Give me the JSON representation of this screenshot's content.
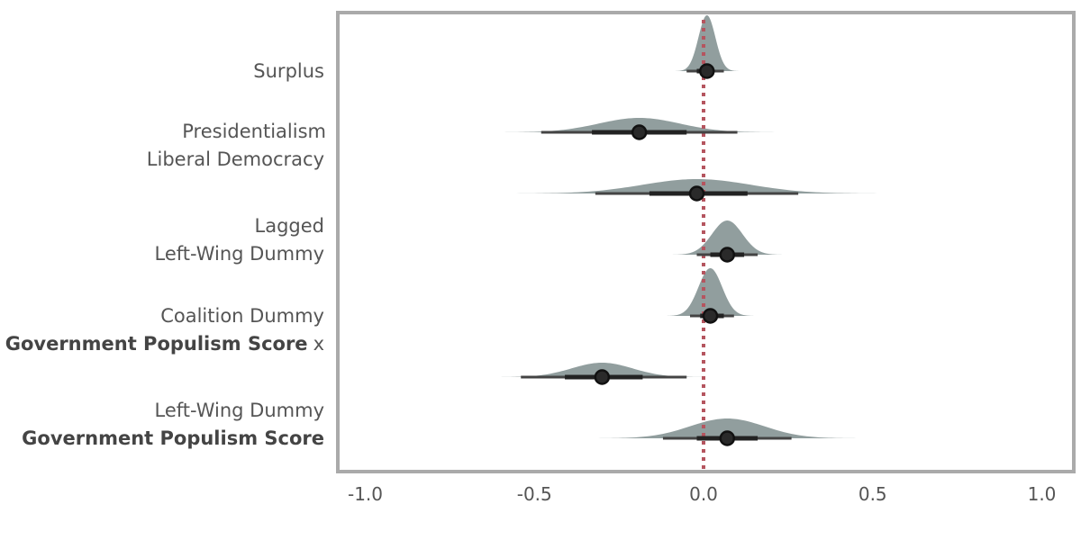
{
  "chart_data": {
    "type": "halfeye",
    "xlim": [
      -1.0,
      1.0
    ],
    "xticks": [
      "-1.0",
      "-0.5",
      "0.0",
      "0.5",
      "1.0"
    ],
    "xtick_values": [
      -1.0,
      -0.5,
      0.0,
      0.5,
      1.0
    ],
    "reference_line": 0.0,
    "colors": {
      "density": "#919e9e",
      "interval": "#222222",
      "point": "#111111",
      "reference": "#b5555f",
      "frame": "#aaaaaa",
      "label": "#555555"
    },
    "rows": [
      {
        "name": "Surplus",
        "median": 0.01,
        "sd": 0.025,
        "inner": [
          -0.02,
          0.03
        ],
        "outer": [
          -0.05,
          0.06
        ]
      },
      {
        "name": "Presidentialism",
        "median": -0.19,
        "sd": 0.12,
        "inner": [
          -0.33,
          -0.05
        ],
        "outer": [
          -0.48,
          0.1
        ]
      },
      {
        "name": "Liberal Democracy",
        "median": -0.02,
        "sd": 0.16,
        "inner": [
          -0.16,
          0.13
        ],
        "outer": [
          -0.32,
          0.28
        ]
      },
      {
        "name": "Lagged Left-Wing Dummy",
        "median": 0.07,
        "sd": 0.045,
        "inner": [
          0.02,
          0.12
        ],
        "outer": [
          -0.02,
          0.16
        ]
      },
      {
        "name": "Coalition Dummy",
        "median": 0.02,
        "sd": 0.035,
        "inner": [
          -0.01,
          0.06
        ],
        "outer": [
          -0.04,
          0.09
        ]
      },
      {
        "name": "Government Populism Score x Left-Wing Dummy",
        "median": -0.3,
        "sd": 0.09,
        "inner": [
          -0.41,
          -0.18
        ],
        "outer": [
          -0.54,
          -0.05
        ]
      },
      {
        "name": "Government Populism Score",
        "median": 0.07,
        "sd": 0.11,
        "inner": [
          -0.02,
          0.16
        ],
        "outer": [
          -0.12,
          0.26
        ]
      }
    ]
  },
  "labels": {
    "l1": "Surplus",
    "l2": "Presidentialism",
    "l3": "Liberal Democracy",
    "l4a": "Lagged",
    "l4b": "Left-Wing Dummy",
    "l5": "Coalition Dummy",
    "l6a": "Government Populism Score",
    "l6b": "x",
    "l7": "Left-Wing Dummy",
    "l8": "Government Populism Score"
  }
}
